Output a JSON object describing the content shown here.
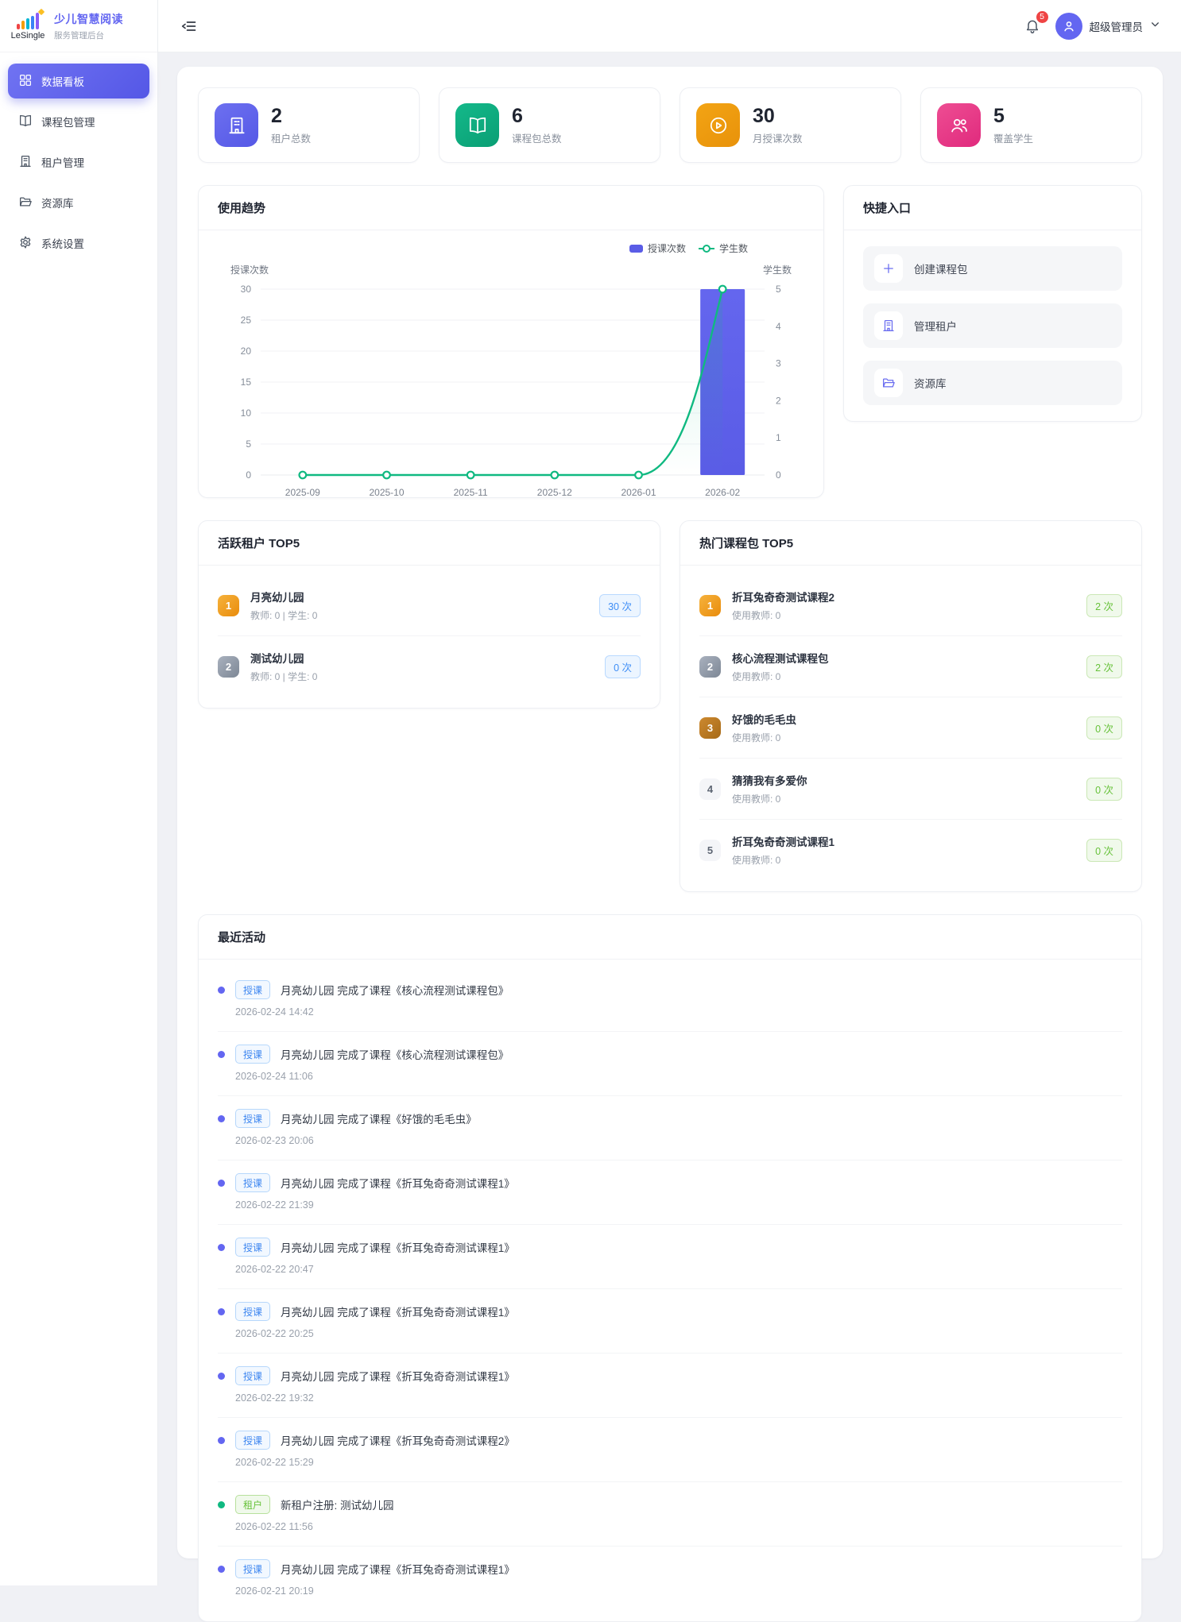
{
  "sidebar": {
    "brand": {
      "name": "LeSingle",
      "title": "少儿智慧阅读",
      "subtitle": "服务管理后台"
    },
    "items": [
      {
        "label": "数据看板",
        "icon": "dashboard-icon",
        "active": true
      },
      {
        "label": "课程包管理",
        "icon": "book-icon",
        "active": false
      },
      {
        "label": "租户管理",
        "icon": "building-icon",
        "active": false
      },
      {
        "label": "资源库",
        "icon": "folder-icon",
        "active": false
      },
      {
        "label": "系统设置",
        "icon": "gear-icon",
        "active": false
      }
    ]
  },
  "header": {
    "notification_count": "5",
    "user_name": "超级管理员"
  },
  "stats": [
    {
      "value": "2",
      "label": "租户总数",
      "icon": "building-icon",
      "color": "#6366f1"
    },
    {
      "value": "6",
      "label": "课程包总数",
      "icon": "book-icon",
      "color": "#10b981"
    },
    {
      "value": "30",
      "label": "月授课次数",
      "icon": "play-icon",
      "color": "#f59e0b"
    },
    {
      "value": "5",
      "label": "覆盖学生",
      "icon": "users-icon",
      "color": "#ec4899"
    }
  ],
  "trend": {
    "title": "使用趋势"
  },
  "chart_data": {
    "type": "bar",
    "categories": [
      "2025-09",
      "2025-10",
      "2025-11",
      "2025-12",
      "2026-01",
      "2026-02"
    ],
    "series": [
      {
        "name": "授课次数",
        "type": "bar",
        "axis": "left",
        "values": [
          0,
          0,
          0,
          0,
          0,
          30
        ],
        "color": "#5a5ce6"
      },
      {
        "name": "学生数",
        "type": "line",
        "axis": "right",
        "values": [
          0,
          0,
          0,
          0,
          0,
          5
        ],
        "color": "#10b981"
      }
    ],
    "left_axis": {
      "label": "授课次数",
      "min": 0,
      "max": 30,
      "ticks": [
        0,
        5,
        10,
        15,
        20,
        25,
        30
      ]
    },
    "right_axis": {
      "label": "学生数",
      "min": 0,
      "max": 5,
      "ticks": [
        0,
        1,
        2,
        3,
        4,
        5
      ]
    },
    "legend": [
      "授课次数",
      "学生数"
    ],
    "legend_position": "top-right",
    "grid": true
  },
  "quick": {
    "title": "快捷入口",
    "items": [
      {
        "label": "创建课程包",
        "icon": "plus-icon"
      },
      {
        "label": "管理租户",
        "icon": "building-icon"
      },
      {
        "label": "资源库",
        "icon": "folder-icon"
      }
    ]
  },
  "active_tenants": {
    "title": "活跃租户 TOP5",
    "items": [
      {
        "rank": "1",
        "name": "月亮幼儿园",
        "meta": "教师: 0 | 学生: 0",
        "count": "30 次"
      },
      {
        "rank": "2",
        "name": "测试幼儿园",
        "meta": "教师: 0 | 学生: 0",
        "count": "0 次"
      }
    ]
  },
  "hot_packages": {
    "title": "热门课程包 TOP5",
    "items": [
      {
        "rank": "1",
        "name": "折耳兔奇奇测试课程2",
        "meta": "使用教师: 0",
        "count": "2 次"
      },
      {
        "rank": "2",
        "name": "核心流程测试课程包",
        "meta": "使用教师: 0",
        "count": "2 次"
      },
      {
        "rank": "3",
        "name": "好饿的毛毛虫",
        "meta": "使用教师: 0",
        "count": "0 次"
      },
      {
        "rank": "4",
        "name": "猜猜我有多爱你",
        "meta": "使用教师: 0",
        "count": "0 次"
      },
      {
        "rank": "5",
        "name": "折耳兔奇奇测试课程1",
        "meta": "使用教师: 0",
        "count": "0 次"
      }
    ]
  },
  "activities": {
    "title": "最近活动",
    "items": [
      {
        "type": "teach",
        "tag": "授课",
        "text": "月亮幼儿园 完成了课程《核心流程测试课程包》",
        "time": "2026-02-24 14:42"
      },
      {
        "type": "teach",
        "tag": "授课",
        "text": "月亮幼儿园 完成了课程《核心流程测试课程包》",
        "time": "2026-02-24 11:06"
      },
      {
        "type": "teach",
        "tag": "授课",
        "text": "月亮幼儿园 完成了课程《好饿的毛毛虫》",
        "time": "2026-02-23 20:06"
      },
      {
        "type": "teach",
        "tag": "授课",
        "text": "月亮幼儿园 完成了课程《折耳兔奇奇测试课程1》",
        "time": "2026-02-22 21:39"
      },
      {
        "type": "teach",
        "tag": "授课",
        "text": "月亮幼儿园 完成了课程《折耳兔奇奇测试课程1》",
        "time": "2026-02-22 20:47"
      },
      {
        "type": "teach",
        "tag": "授课",
        "text": "月亮幼儿园 完成了课程《折耳兔奇奇测试课程1》",
        "time": "2026-02-22 20:25"
      },
      {
        "type": "teach",
        "tag": "授课",
        "text": "月亮幼儿园 完成了课程《折耳兔奇奇测试课程1》",
        "time": "2026-02-22 19:32"
      },
      {
        "type": "teach",
        "tag": "授课",
        "text": "月亮幼儿园 完成了课程《折耳兔奇奇测试课程2》",
        "time": "2026-02-22 15:29"
      },
      {
        "type": "tenant",
        "tag": "租户",
        "text": "新租户注册: 测试幼儿园",
        "time": "2026-02-22 11:56"
      },
      {
        "type": "teach",
        "tag": "授课",
        "text": "月亮幼儿园 完成了课程《折耳兔奇奇测试课程1》",
        "time": "2026-02-21 20:19"
      }
    ]
  }
}
